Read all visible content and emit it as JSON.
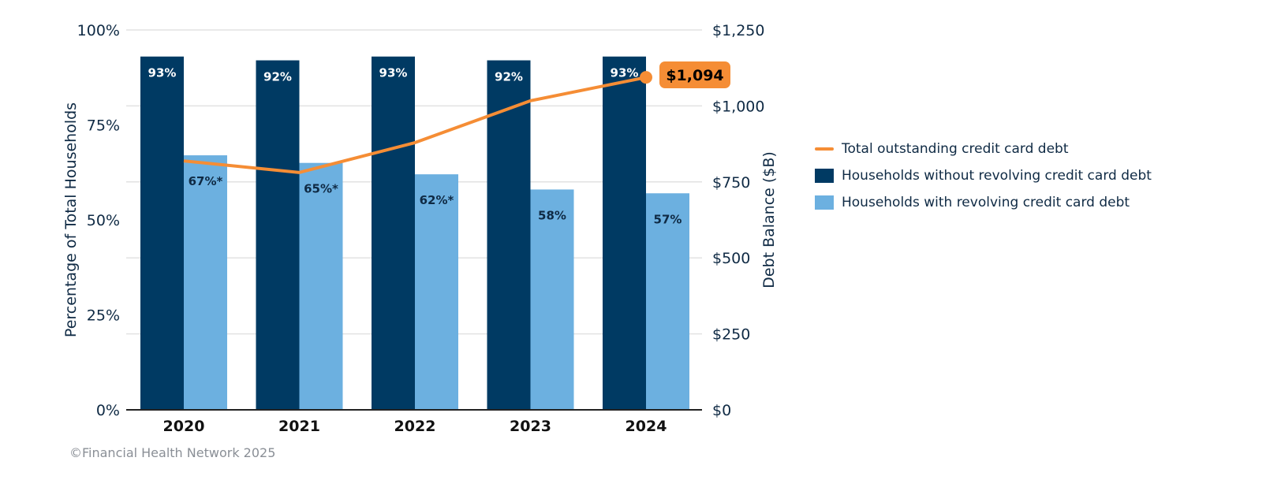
{
  "chart_data": {
    "type": "bar",
    "categories": [
      "2020",
      "2021",
      "2022",
      "2023",
      "2024"
    ],
    "series": [
      {
        "name": "Households without revolving credit card debt",
        "axis": "left",
        "values": [
          93,
          92,
          93,
          92,
          93
        ],
        "labels": [
          "93%",
          "92%",
          "93%",
          "92%",
          "93%"
        ],
        "color": "#003a63"
      },
      {
        "name": "Households with revolving credit card debt",
        "axis": "left",
        "values": [
          67,
          65,
          62,
          58,
          57
        ],
        "labels": [
          "67%*",
          "65%*",
          "62%*",
          "58%",
          "57%"
        ],
        "color": "#6cb0e0"
      },
      {
        "name": "Total outstanding credit card debt",
        "type": "line",
        "axis": "right",
        "values": [
          819,
          781,
          879,
          1017,
          1094
        ],
        "color": "#f58d35"
      }
    ],
    "callout": "$1,094",
    "ylabel": "Percentage of Total Households",
    "ylim": [
      0,
      100
    ],
    "yticks": [
      "0%",
      "25%",
      "50%",
      "75%",
      "100%"
    ],
    "y2label": "Debt Balance ($B)",
    "y2lim": [
      0,
      1250
    ],
    "y2ticks": [
      "$0",
      "$250",
      "$500",
      "$750",
      "$1,000",
      "$1,250"
    ],
    "grid": true,
    "legend_position": "right"
  },
  "footer": "©Financial Health Network 2025"
}
